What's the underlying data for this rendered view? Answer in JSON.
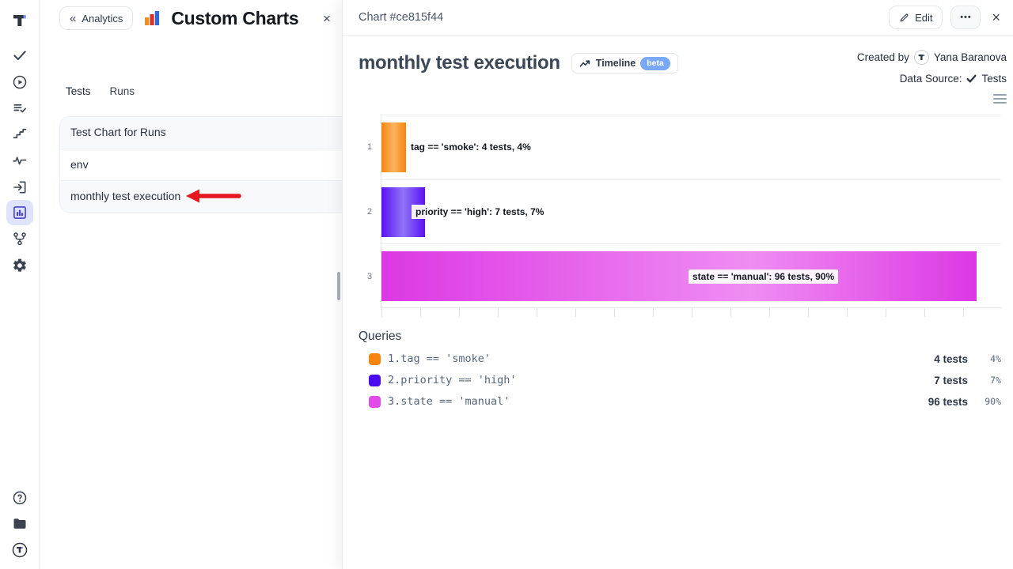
{
  "sidebar": {
    "icons": [
      "check",
      "play-circle",
      "list-check",
      "steps",
      "activity",
      "import",
      "bar-chart",
      "branch",
      "gear"
    ],
    "active_icon": "bar-chart",
    "bottom_icons": [
      "help",
      "folder",
      "account"
    ]
  },
  "drawer": {
    "back_icon": "«",
    "back_label": "Analytics",
    "title": "Custom Charts",
    "close_glyph": "×",
    "tabs": [
      {
        "label": "Tests"
      },
      {
        "label": "Runs"
      }
    ],
    "items": [
      {
        "label": "Test Chart for Runs"
      },
      {
        "label": "env"
      },
      {
        "label": "monthly test execution"
      }
    ],
    "annotation": {
      "arrow_color": "#e5191f",
      "points_to": "monthly test execution"
    }
  },
  "panel": {
    "header": {
      "title": "Chart #ce815f44",
      "edit_label": "Edit",
      "more_glyph": "•••",
      "close_glyph": "×"
    },
    "chart_title": "monthly test execution",
    "timeline": {
      "label": "Timeline",
      "badge": "beta",
      "badge_color": "#7aa8f8"
    },
    "created_by_label": "Created by",
    "created_by_user": "Yana Baranova",
    "data_source_label": "Data Source:",
    "data_source_value": "Tests",
    "queries_title": "Queries",
    "queries": [
      {
        "index": "1.",
        "query": "tag == 'smoke'",
        "tests": "4 tests",
        "percent": "4%",
        "color": "#f6860f"
      },
      {
        "index": "2.",
        "query": "priority == 'high'",
        "tests": "7 tests",
        "percent": "7%",
        "color": "#4a0bf0"
      },
      {
        "index": "3.",
        "query": "state == 'manual'",
        "tests": "96 tests",
        "percent": "90%",
        "color": "#e14be9"
      }
    ]
  },
  "chart_data": {
    "type": "bar",
    "orientation": "horizontal",
    "title": "monthly test execution",
    "categories": [
      "1",
      "2",
      "3"
    ],
    "values": [
      4,
      7,
      96
    ],
    "unit": "tests",
    "percent_of_total": [
      4,
      7,
      90
    ],
    "bar_labels": [
      "tag == 'smoke': 4 tests, 4%",
      "priority == 'high': 7 tests, 7%",
      "state == 'manual': 96 tests, 90%"
    ],
    "bar_colors": [
      {
        "edge": "#f5860f",
        "mid": "#fcb45e",
        "mid_pos": "50%"
      },
      {
        "edge": "#5a10f2",
        "mid": "#8f75f7",
        "mid_pos": "50%"
      },
      {
        "edge": "#dc38e4",
        "mid": "#ef8df3",
        "mid_pos": "62%"
      }
    ],
    "xlim": [
      0,
      100
    ],
    "grid": true,
    "legend_position": "bottom"
  }
}
